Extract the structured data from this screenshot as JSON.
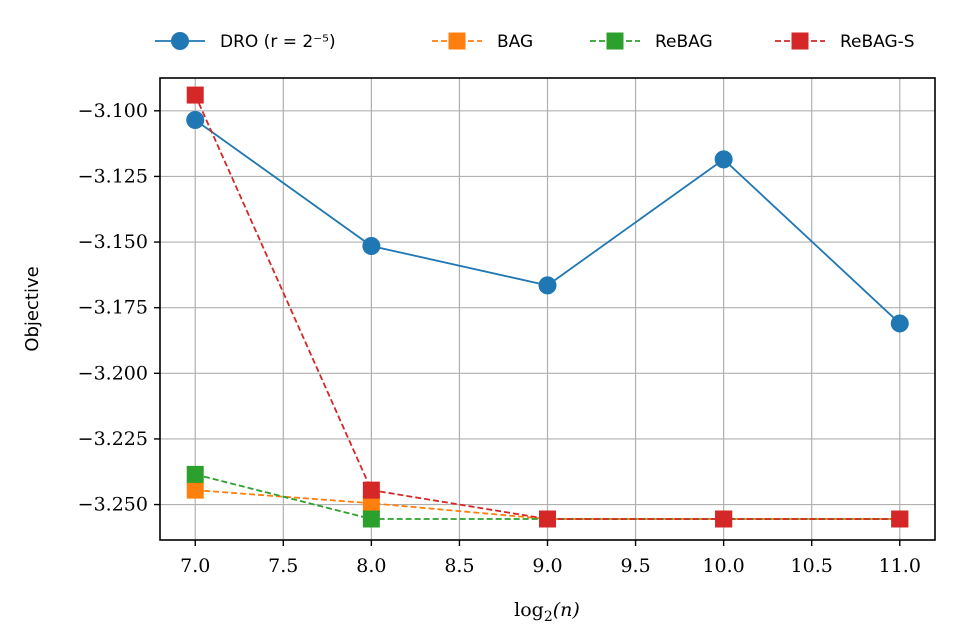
{
  "chart_data": {
    "type": "line",
    "title": "",
    "xlabel": "log₂(n)",
    "ylabel": "Objective",
    "xlim": [
      6.8,
      11.2
    ],
    "ylim": [
      -3.2635,
      -3.0875
    ],
    "xticks": [
      7.0,
      7.5,
      8.0,
      8.5,
      9.0,
      9.5,
      10.0,
      10.5,
      11.0
    ],
    "xtick_labels": [
      "7.0",
      "7.5",
      "8.0",
      "8.5",
      "9.0",
      "9.5",
      "10.0",
      "10.5",
      "11.0"
    ],
    "yticks": [
      -3.1,
      -3.125,
      -3.15,
      -3.175,
      -3.2,
      -3.225,
      -3.25
    ],
    "ytick_labels": [
      "−3.100",
      "−3.125",
      "−3.150",
      "−3.175",
      "−3.200",
      "−3.225",
      "−3.250"
    ],
    "grid": true,
    "legend_position": "top, above plot",
    "x": [
      7,
      8,
      9,
      10,
      11
    ],
    "series": [
      {
        "name": "DRO (r = 2⁻⁵)",
        "color": "#1f77b4",
        "marker": "circle",
        "linestyle": "solid",
        "values": [
          -3.1035,
          -3.1515,
          -3.1665,
          -3.1185,
          -3.181
        ]
      },
      {
        "name": "BAG",
        "color": "#ff7f0e",
        "marker": "square",
        "linestyle": "dashed",
        "values": [
          -3.2445,
          -3.2495,
          -3.2555,
          -3.2555,
          -3.2555
        ]
      },
      {
        "name": "ReBAG",
        "color": "#2ca02c",
        "marker": "square",
        "linestyle": "dashed",
        "values": [
          -3.2385,
          -3.2555,
          -3.2555,
          -3.2555,
          -3.2555
        ]
      },
      {
        "name": "ReBAG-S",
        "color": "#d62728",
        "marker": "square",
        "linestyle": "dashed",
        "values": [
          -3.094,
          -3.2445,
          -3.2555,
          -3.2555,
          -3.2555
        ]
      }
    ]
  }
}
